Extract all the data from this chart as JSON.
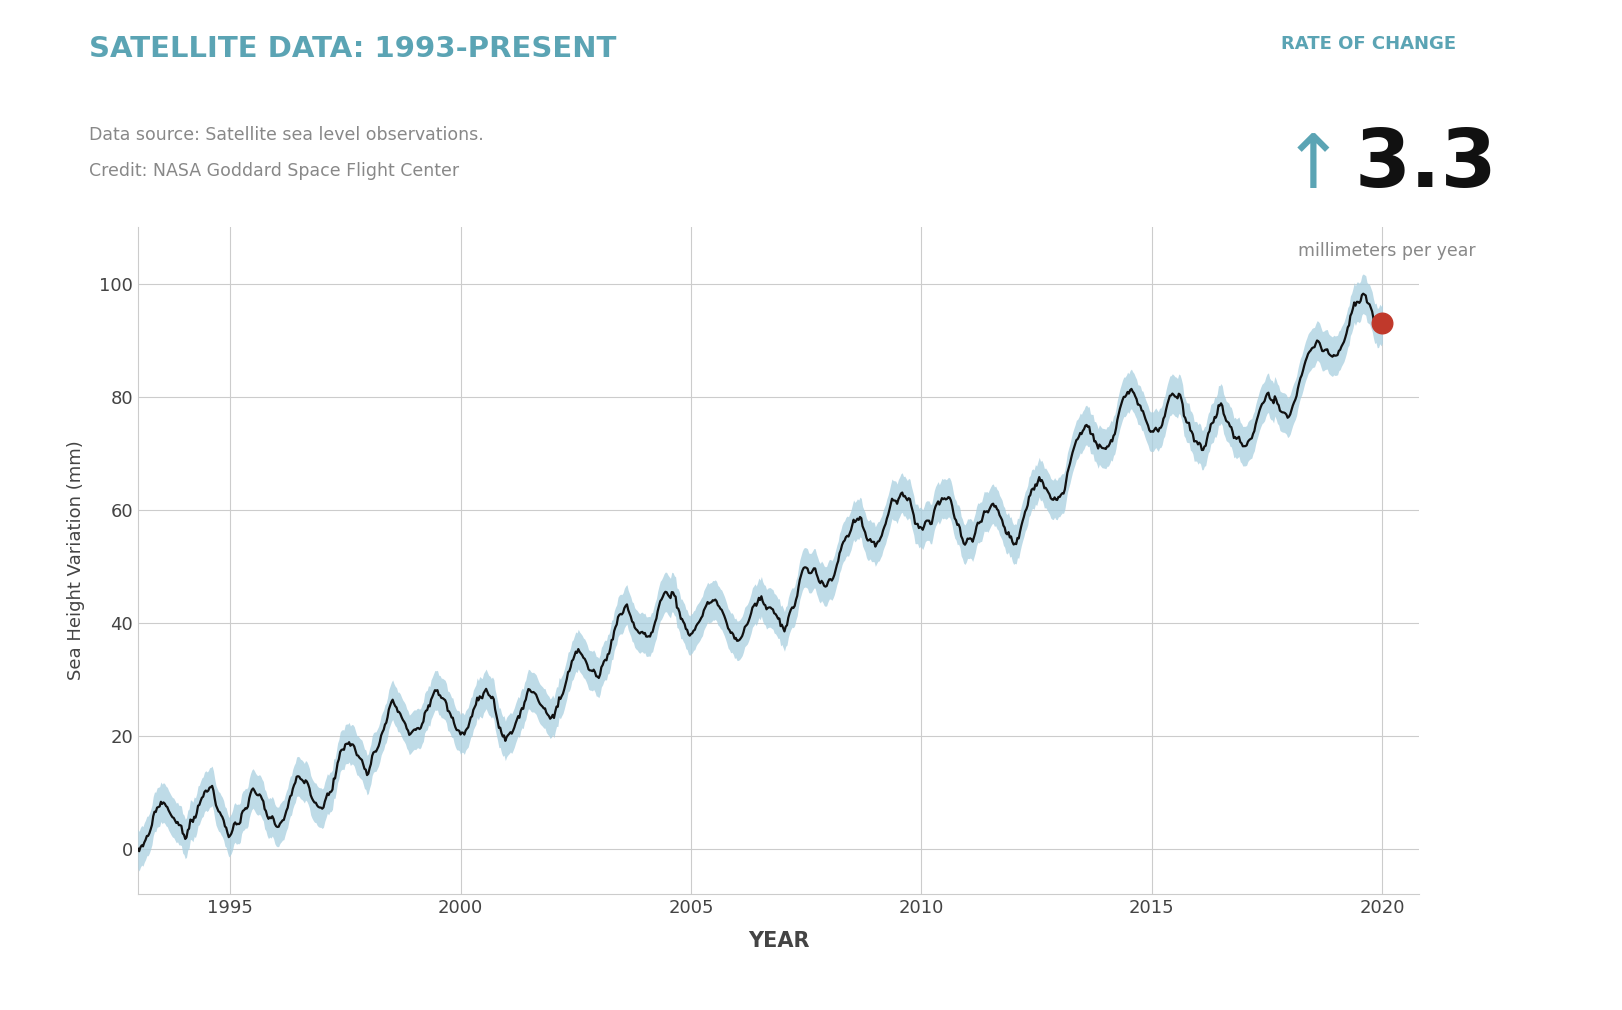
{
  "title": "SATELLITE DATA: 1993-PRESENT",
  "title_color": "#5ba4b4",
  "source_line1": "Data source: Satellite sea level observations.",
  "source_line2": "Credit: NASA Goddard Space Flight Center",
  "source_color": "#888888",
  "rate_label": "RATE OF CHANGE",
  "rate_value": "3.3",
  "rate_units": "millimeters per year",
  "rate_color": "#5ba4b4",
  "xlabel": "YEAR",
  "ylabel": "Sea Height Variation (mm)",
  "xlim": [
    1993.0,
    2020.8
  ],
  "ylim": [
    -8,
    110
  ],
  "xticks": [
    1995,
    2000,
    2005,
    2010,
    2015,
    2020
  ],
  "yticks": [
    0,
    20,
    40,
    60,
    80,
    100
  ],
  "line_color": "#111111",
  "band_color": "#a8cfe0",
  "endpoint_color": "#c0392b",
  "background_color": "#ffffff",
  "grid_color": "#cccccc",
  "rate_of_change_mm_per_year": 3.3,
  "start_year": 1993.0,
  "end_year": 2020.0
}
